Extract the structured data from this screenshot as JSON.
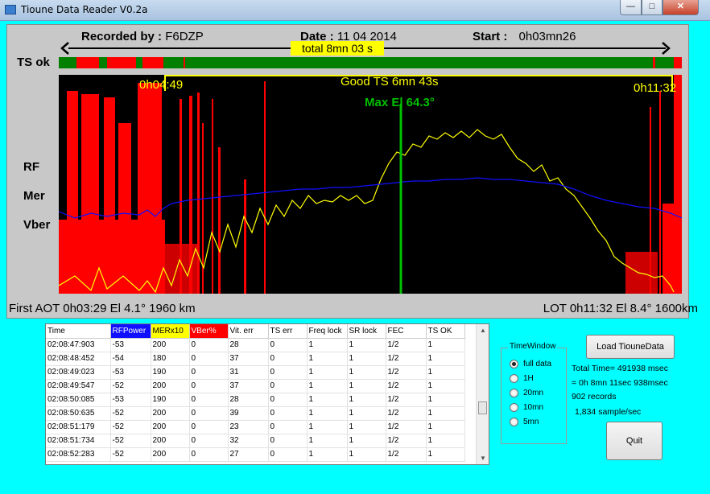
{
  "window": {
    "title": "Tioune Data Reader V0.2a",
    "min": "—",
    "max": "□",
    "close": "✕"
  },
  "header": {
    "recorded_label": "Recorded by :",
    "recorded_value": "F6DZP",
    "date_label": "Date :",
    "date_value": "11 04 2014",
    "start_label": "Start :",
    "start_value": "0h03mn26",
    "total": "total 8mn 03 s"
  },
  "ts_label": "TS ok",
  "plot_labels": {
    "good_start": "0h04:49",
    "good_ts": "Good TS  6mn 43s",
    "good_end": "0h11:32",
    "max_el": "Max El 64.3°",
    "rf": "RF",
    "mer": "Mer",
    "vber": "Vber",
    "colors": {
      "rf": "#1010ff",
      "mer": "#ffff00",
      "vber": "#ff0000",
      "ts_ok": "#008000",
      "max_el": "#00c000"
    }
  },
  "footer": {
    "aot": "First AOT 0h03:29 El 4.1° 1960 km",
    "lot": "LOT 0h11:32 El 8.4° 1600km"
  },
  "table": {
    "headers": [
      "Time",
      "RFPower",
      "MERx10",
      "VBer%",
      "Vit. err",
      "TS err",
      "Freq lock",
      "SR lock",
      "FEC",
      "TS OK"
    ],
    "header_colors": [
      "",
      "#1010ff",
      "#ffff00",
      "#ff0000",
      "",
      "",
      "",
      "",
      "",
      ""
    ],
    "rows": [
      [
        "02:08:47:903",
        "-53",
        "200",
        "0",
        "28",
        "0",
        "1",
        "1",
        "1/2",
        "1"
      ],
      [
        "02:08:48:452",
        "-54",
        "180",
        "0",
        "37",
        "0",
        "1",
        "1",
        "1/2",
        "1"
      ],
      [
        "02:08:49:023",
        "-53",
        "190",
        "0",
        "31",
        "0",
        "1",
        "1",
        "1/2",
        "1"
      ],
      [
        "02:08:49:547",
        "-52",
        "200",
        "0",
        "37",
        "0",
        "1",
        "1",
        "1/2",
        "1"
      ],
      [
        "02:08:50:085",
        "-53",
        "190",
        "0",
        "28",
        "0",
        "1",
        "1",
        "1/2",
        "1"
      ],
      [
        "02:08:50:635",
        "-52",
        "200",
        "0",
        "39",
        "0",
        "1",
        "1",
        "1/2",
        "1"
      ],
      [
        "02:08:51:179",
        "-52",
        "200",
        "0",
        "23",
        "0",
        "1",
        "1",
        "1/2",
        "1"
      ],
      [
        "02:08:51:734",
        "-52",
        "200",
        "0",
        "32",
        "0",
        "1",
        "1",
        "1/2",
        "1"
      ],
      [
        "02:08:52:283",
        "-52",
        "200",
        "0",
        "27",
        "0",
        "1",
        "1",
        "1/2",
        "1"
      ]
    ]
  },
  "time_window": {
    "title": "TimeWindow",
    "options": [
      "full data",
      "1H",
      "20mn",
      "10mn",
      "5mn"
    ],
    "selected": "full data"
  },
  "buttons": {
    "load": "Load TiouneData",
    "quit": "Quit"
  },
  "stats": {
    "total_time": "Total Time= 491938 msec",
    "duration": "= 0h 8mn 11sec 938msec",
    "records": "902 records",
    "rate": "1,834 sample/sec"
  }
}
